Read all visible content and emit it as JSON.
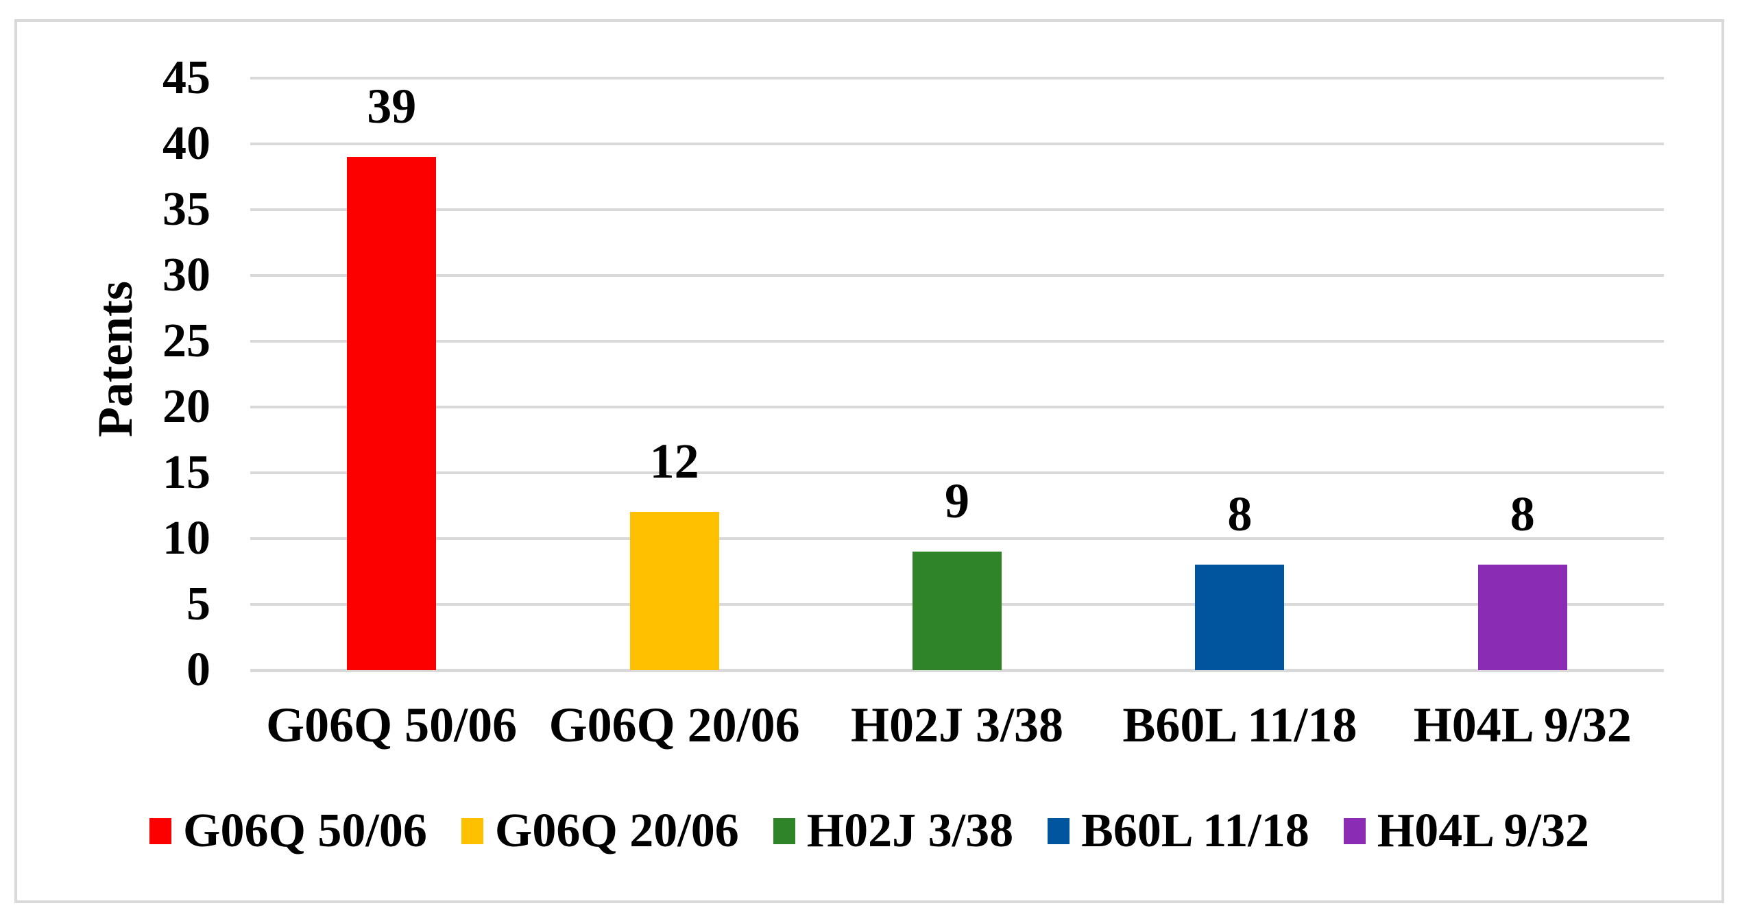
{
  "colors": {
    "background": "#FFFFFF",
    "frame_border": "#D9D9D9",
    "gridline": "#D9D9D9",
    "text": "#000000"
  },
  "chart_data": {
    "type": "bar",
    "title": "",
    "xlabel": "",
    "ylabel": "Patents",
    "ylim": [
      0,
      45
    ],
    "yticks": [
      0,
      5,
      10,
      15,
      20,
      25,
      30,
      35,
      40,
      45
    ],
    "grid": true,
    "legend_position": "bottom",
    "categories": [
      "G06Q 50/06",
      "G06Q 20/06",
      "H02J 3/38",
      "B60L 11/18",
      "H04L 9/32"
    ],
    "values": [
      39,
      12,
      9,
      8,
      8
    ],
    "value_labels": [
      "39",
      "12",
      "9",
      "8",
      "8"
    ],
    "bar_colors": [
      "#FC0000",
      "#FFC000",
      "#2F8428",
      "#01549E",
      "#8A2DB4"
    ],
    "legend": [
      {
        "label": "G06Q 50/06",
        "color": "#FC0000"
      },
      {
        "label": "G06Q 20/06",
        "color": "#FFC000"
      },
      {
        "label": "H02J 3/38",
        "color": "#2F8428"
      },
      {
        "label": "B60L 11/18",
        "color": "#01549E"
      },
      {
        "label": "H04L 9/32",
        "color": "#8A2DB4"
      }
    ]
  }
}
